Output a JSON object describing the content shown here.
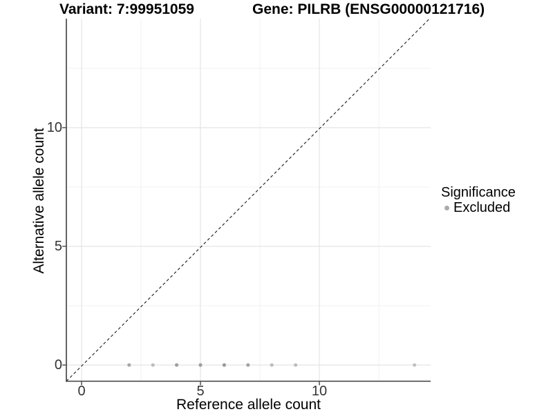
{
  "header": {
    "variant_title": "Variant: 7:99951059",
    "gene_title": "Gene: PILRB (ENSG00000121716)"
  },
  "chart_data": {
    "type": "scatter",
    "title": "Variant: 7:99951059 — Gene: PILRB (ENSG00000121716)",
    "xlabel": "Reference allele count",
    "ylabel": "Alternative allele count",
    "xlim": [
      -0.64,
      14.68
    ],
    "ylim": [
      -0.67,
      14.6
    ],
    "grid": true,
    "x_major_ticks": [
      0,
      5,
      10
    ],
    "y_major_ticks": [
      0,
      5,
      10
    ],
    "x_tick_labels": [
      "0",
      "5",
      "10"
    ],
    "y_tick_labels": [
      "0",
      "5",
      "10"
    ],
    "x_minor_gridlines": [
      2.5,
      7.5,
      12.5
    ],
    "y_minor_gridlines": [
      2.5,
      7.5,
      12.5
    ],
    "identity_line": {
      "slope": 1,
      "intercept": 0,
      "style": "dashed",
      "color": "#1a1a1a"
    },
    "series": [
      {
        "name": "Excluded",
        "points": [
          {
            "x": 2,
            "y": 0,
            "alpha": 0.75
          },
          {
            "x": 3,
            "y": 0,
            "alpha": 0.55
          },
          {
            "x": 4,
            "y": 0,
            "alpha": 0.85
          },
          {
            "x": 5,
            "y": 0,
            "alpha": 0.85
          },
          {
            "x": 6,
            "y": 0,
            "alpha": 0.9
          },
          {
            "x": 7,
            "y": 0,
            "alpha": 0.8
          },
          {
            "x": 8,
            "y": 0,
            "alpha": 0.55
          },
          {
            "x": 9,
            "y": 0,
            "alpha": 0.55
          },
          {
            "x": 14,
            "y": 0,
            "alpha": 0.5
          }
        ]
      }
    ],
    "legend": {
      "title": "Significance",
      "position": "right",
      "entries": [
        {
          "label": "Excluded",
          "color": "#ababab"
        }
      ]
    },
    "colors": {
      "point": "#8f8f8f",
      "grid_major": "#e4e4e4",
      "grid_minor": "#f1f1f1",
      "axis_line": "#3c3c3c",
      "tick_mark": "#333333",
      "tick_label": "#333333",
      "background": "#ffffff"
    }
  }
}
